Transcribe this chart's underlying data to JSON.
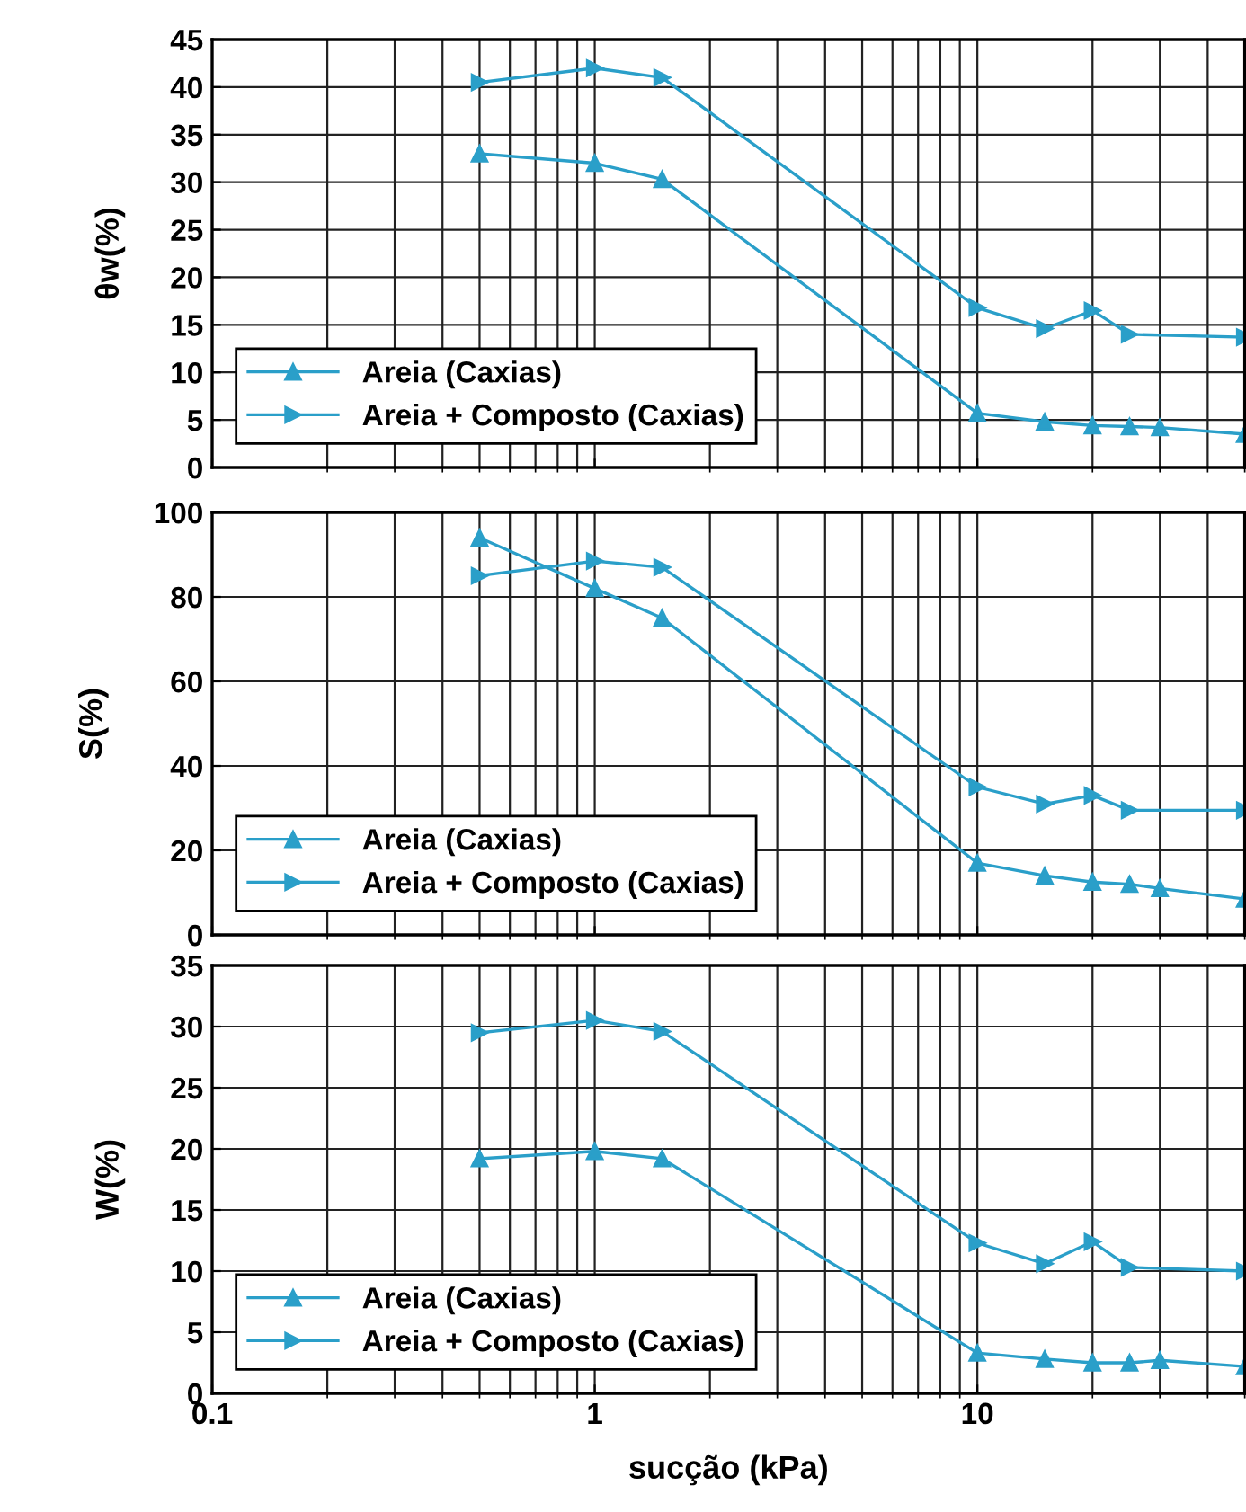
{
  "chart_data": [
    {
      "type": "line",
      "ylabel": "θw(%)",
      "log": "x",
      "xlim": [
        0.1,
        50
      ],
      "xticks": [
        0.1,
        1,
        10
      ],
      "ylim": [
        0,
        45
      ],
      "yticks": [
        0,
        5,
        10,
        15,
        20,
        25,
        30,
        35,
        40,
        45
      ],
      "grid": true,
      "legend": "bottom left",
      "tick_labels": "y",
      "series": [
        {
          "name": "Areia (Caxias)",
          "color": "#2a9fc9",
          "marker": "triangle",
          "x": [
            0.5,
            1,
            1.5,
            10,
            15,
            20,
            25,
            30,
            50
          ],
          "values": [
            33,
            32,
            30.3,
            5.7,
            4.8,
            4.4,
            4.3,
            4.2,
            3.5
          ]
        },
        {
          "name": "Areia + Composto (Caxias)",
          "color": "#2a9fc9",
          "marker": "triangle_right",
          "x": [
            0.5,
            1,
            1.5,
            10,
            15,
            20,
            25,
            50
          ],
          "values": [
            40.5,
            42,
            41,
            16.8,
            14.6,
            16.5,
            14,
            13.7
          ]
        }
      ]
    },
    {
      "type": "line",
      "ylabel": "S(%)",
      "log": "x",
      "xlim": [
        0.1,
        50
      ],
      "xticks": [
        0.1,
        1,
        10
      ],
      "ylim": [
        0,
        100
      ],
      "yticks": [
        0,
        20,
        40,
        60,
        80,
        100
      ],
      "grid": true,
      "legend": "bottom left",
      "tick_labels": "y",
      "series": [
        {
          "name": "Areia (Caxias)",
          "color": "#2a9fc9",
          "marker": "triangle",
          "x": [
            0.5,
            1,
            1.5,
            10,
            15,
            20,
            25,
            30,
            50
          ],
          "values": [
            94,
            82,
            75,
            17,
            14,
            12.5,
            12,
            11,
            8.5
          ]
        },
        {
          "name": "Areia + Composto (Caxias)",
          "color": "#2a9fc9",
          "marker": "triangle_right",
          "x": [
            0.5,
            1,
            1.5,
            10,
            15,
            20,
            25,
            50
          ],
          "values": [
            85,
            88.5,
            87,
            35,
            31,
            33,
            29.5,
            29.5
          ]
        }
      ]
    },
    {
      "type": "line",
      "xlabel": "sucção (kPa)",
      "ylabel": "W(%)",
      "log": "x",
      "xlim": [
        0.1,
        50
      ],
      "xticks": [
        0.1,
        1,
        10
      ],
      "ylim": [
        0,
        35
      ],
      "yticks": [
        0,
        5,
        10,
        15,
        20,
        25,
        30,
        35
      ],
      "grid": true,
      "legend": "bottom left",
      "series": [
        {
          "name": "Areia (Caxias)",
          "color": "#2a9fc9",
          "marker": "triangle",
          "x": [
            0.5,
            1,
            1.5,
            10,
            15,
            20,
            25,
            30,
            50
          ],
          "values": [
            19.2,
            19.8,
            19.2,
            3.3,
            2.8,
            2.5,
            2.5,
            2.7,
            2.2
          ]
        },
        {
          "name": "Areia + Composto (Caxias)",
          "color": "#2a9fc9",
          "marker": "triangle_right",
          "x": [
            0.5,
            1,
            1.5,
            10,
            15,
            20,
            25,
            50
          ],
          "values": [
            29.5,
            30.5,
            29.6,
            12.3,
            10.6,
            12.4,
            10.3,
            10
          ]
        }
      ]
    }
  ]
}
